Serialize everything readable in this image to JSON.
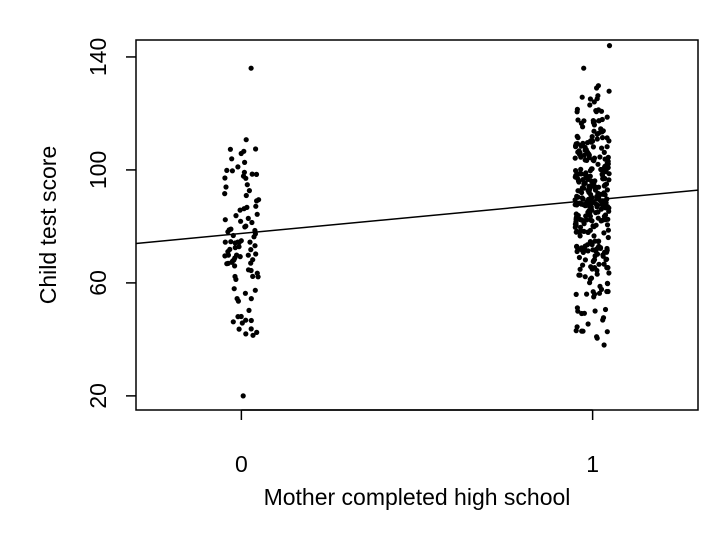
{
  "chart_data": {
    "type": "scatter",
    "title": "",
    "xlabel": "Mother completed high school",
    "ylabel": "Child test score",
    "xlim": [
      -0.3,
      1.3
    ],
    "ylim": [
      15,
      146
    ],
    "x_ticks": [
      0,
      1
    ],
    "x_tick_labels": [
      "0",
      "1"
    ],
    "y_ticks": [
      20,
      60,
      100,
      140
    ],
    "y_tick_labels": [
      "20",
      "60",
      "100",
      "140"
    ],
    "grid": false,
    "legend": "none",
    "jitter": "x values are jittered horizontally around 0 and 1",
    "regression_line": {
      "intercept": 77.5,
      "slope": 11.8
    },
    "groups": [
      {
        "x": 0,
        "y_range": [
          20,
          136
        ],
        "notable_points": [
          20,
          41,
          42,
          45,
          50,
          55,
          60,
          65,
          70,
          75,
          80,
          85,
          90,
          95,
          100,
          105,
          110,
          114,
          136
        ]
      },
      {
        "x": 1,
        "y_range": [
          38,
          144
        ],
        "notable_points": [
          38,
          42,
          45,
          50,
          55,
          60,
          65,
          70,
          75,
          80,
          85,
          90,
          95,
          100,
          105,
          110,
          115,
          120,
          125,
          130,
          136,
          144
        ]
      }
    ],
    "colors": {
      "points": "#000000",
      "line": "#000000",
      "axes": "#000000",
      "background": "#ffffff"
    }
  }
}
